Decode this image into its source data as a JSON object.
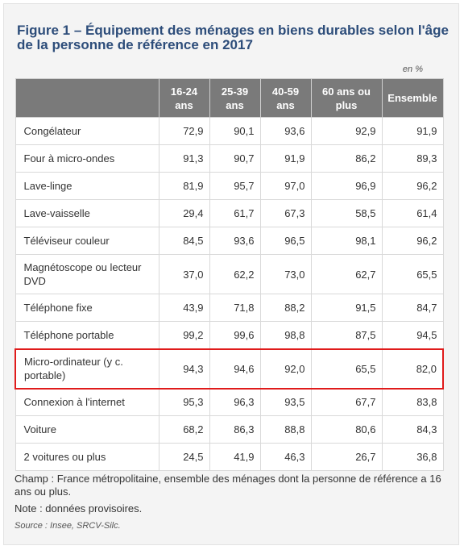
{
  "figure": {
    "title": "Figure 1 – Équipement des ménages en biens durables selon l'âge de la personne de référence en 2017",
    "unit": "en %"
  },
  "table": {
    "columns": [
      "",
      "16-24 ans",
      "25-39 ans",
      "40-59 ans",
      "60 ans ou plus",
      "Ensemble"
    ],
    "rows": [
      {
        "label": "Congélateur",
        "values": [
          "72,9",
          "90,1",
          "93,6",
          "92,9",
          "91,9"
        ]
      },
      {
        "label": "Four à micro-ondes",
        "values": [
          "91,3",
          "90,7",
          "91,9",
          "86,2",
          "89,3"
        ]
      },
      {
        "label": "Lave-linge",
        "values": [
          "81,9",
          "95,7",
          "97,0",
          "96,9",
          "96,2"
        ]
      },
      {
        "label": "Lave-vaisselle",
        "values": [
          "29,4",
          "61,7",
          "67,3",
          "58,5",
          "61,4"
        ]
      },
      {
        "label": "Téléviseur couleur",
        "values": [
          "84,5",
          "93,6",
          "96,5",
          "98,1",
          "96,2"
        ]
      },
      {
        "label": "Magnétoscope ou lecteur DVD",
        "values": [
          "37,0",
          "62,2",
          "73,0",
          "62,7",
          "65,5"
        ]
      },
      {
        "label": "Téléphone fixe",
        "values": [
          "43,9",
          "71,8",
          "88,2",
          "91,5",
          "84,7"
        ]
      },
      {
        "label": "Téléphone portable",
        "values": [
          "99,2",
          "99,6",
          "98,8",
          "87,5",
          "94,5"
        ]
      },
      {
        "label": "Micro-ordinateur (y c. portable)",
        "values": [
          "94,3",
          "94,6",
          "92,0",
          "65,5",
          "82,0"
        ]
      },
      {
        "label": "Connexion à l'internet",
        "values": [
          "95,3",
          "96,3",
          "93,5",
          "67,7",
          "83,8"
        ]
      },
      {
        "label": "Voiture",
        "values": [
          "68,2",
          "86,3",
          "88,8",
          "80,6",
          "84,3"
        ]
      },
      {
        "label": "2 voitures ou plus",
        "values": [
          "24,5",
          "41,9",
          "46,3",
          "26,7",
          "36,8"
        ]
      }
    ]
  },
  "notes": {
    "champ": "Champ : France métropolitaine, ensemble des ménages dont la personne de référence a 16 ans ou plus.",
    "note": "Note : données provisoires.",
    "source": "Source : Insee, SRCV-Silc."
  },
  "colors": {
    "title": "#2d4d7a",
    "header_bg": "#7a7a7a",
    "highlight_border": "#e01b1b",
    "panel_bg": "#f4f4f4"
  }
}
